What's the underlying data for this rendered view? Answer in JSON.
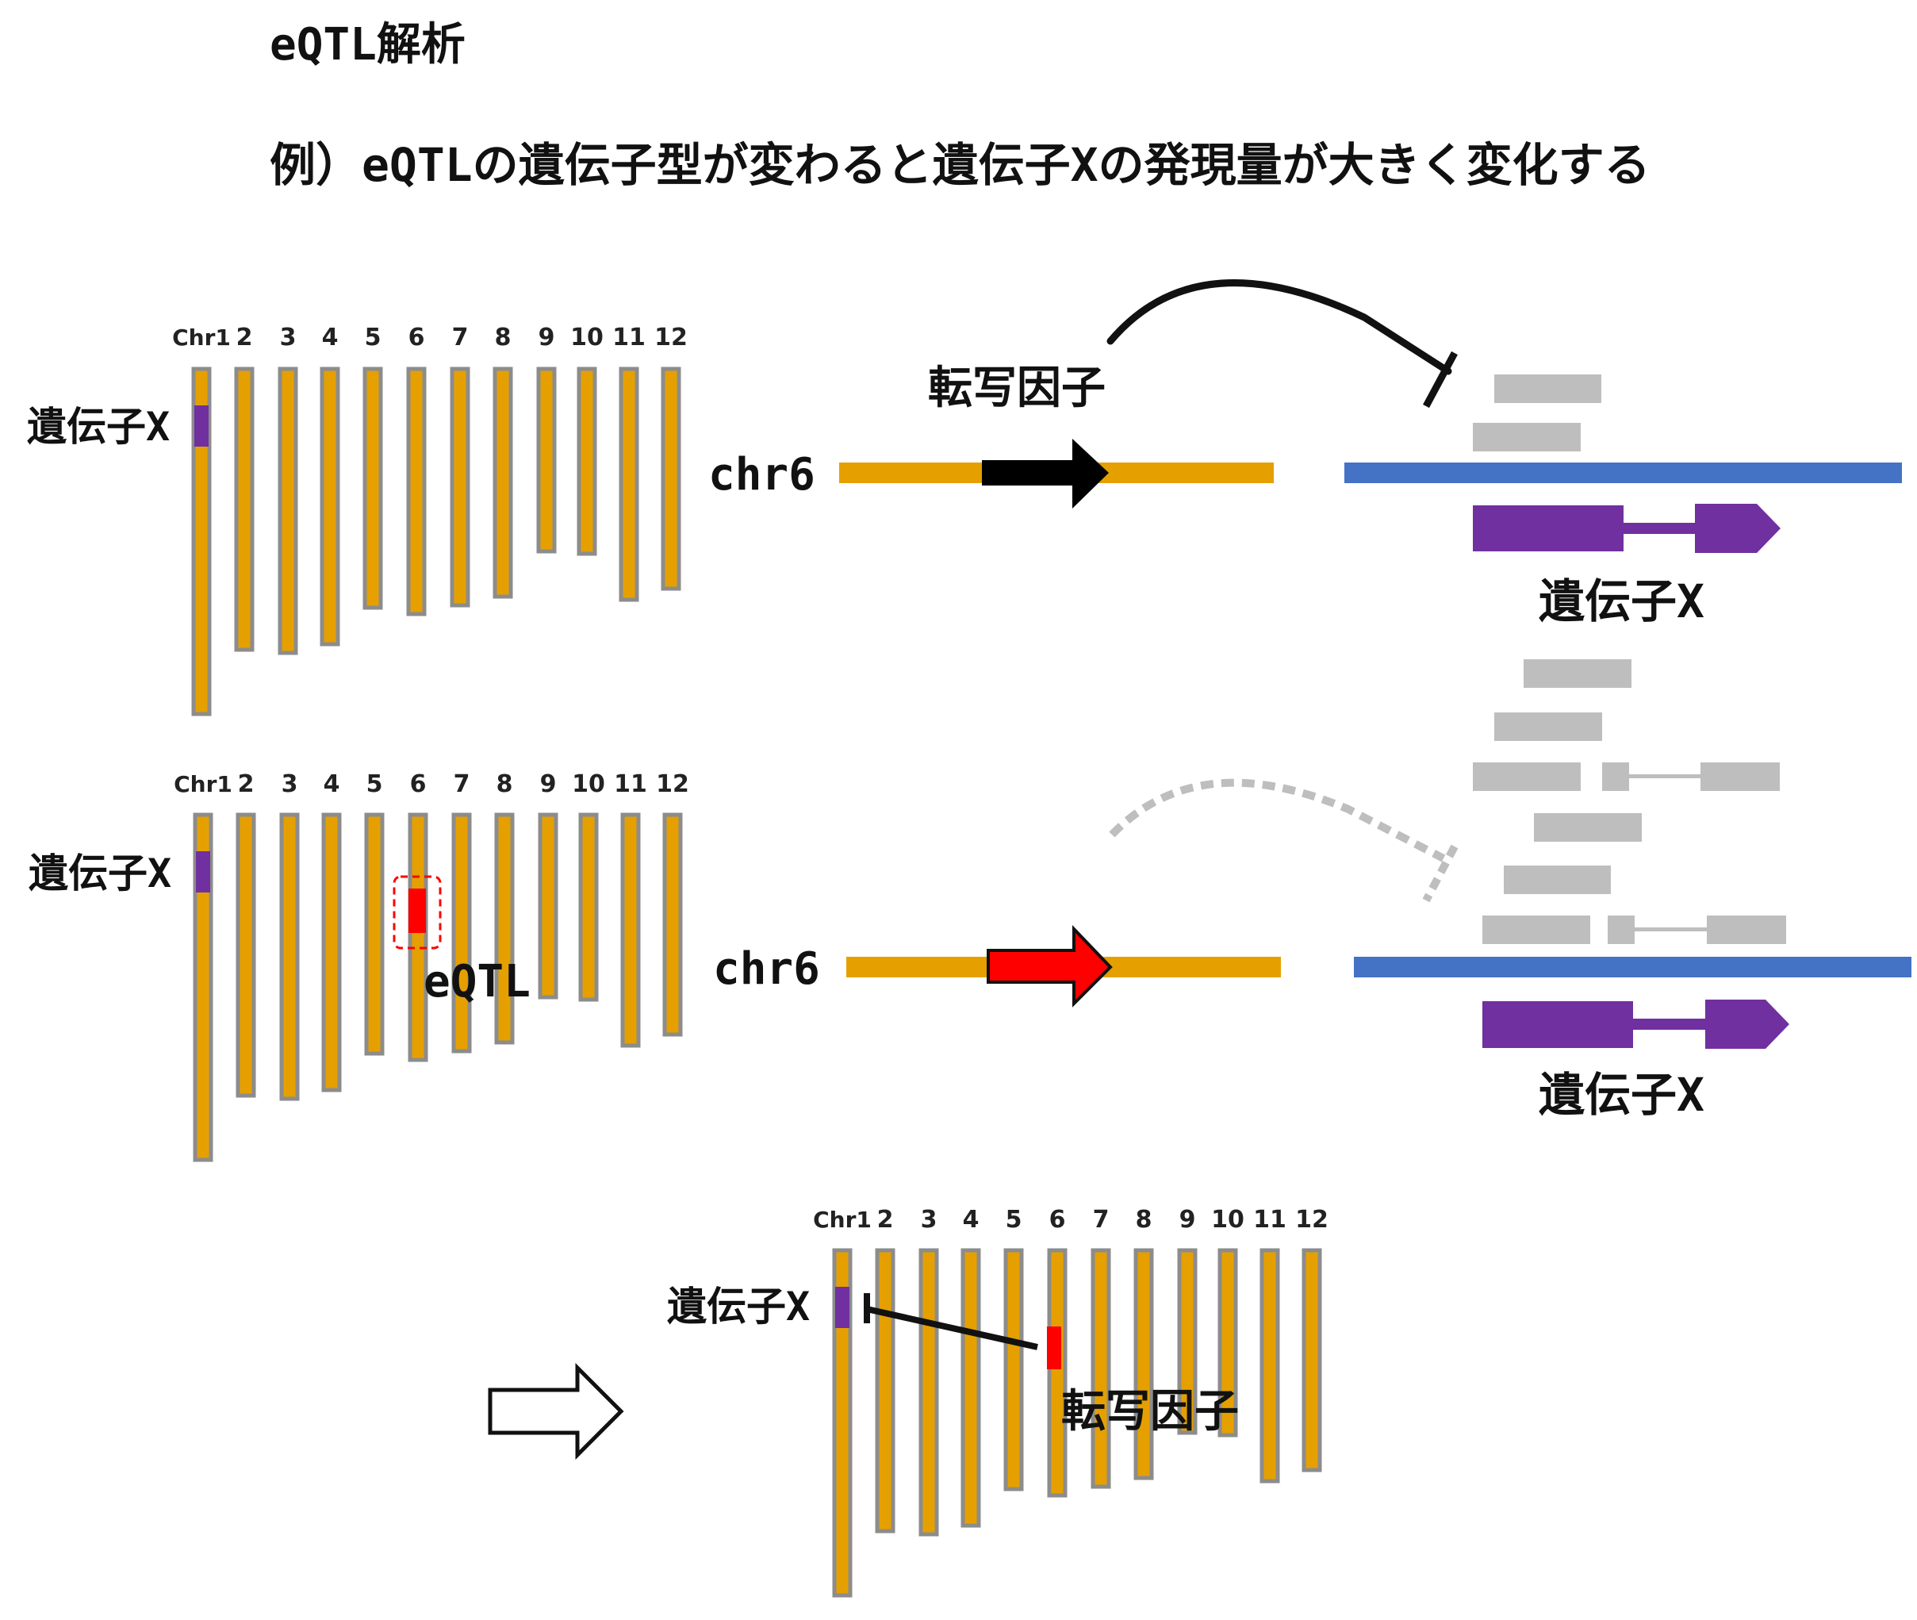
{
  "title": "eQTL解析",
  "subtitle": "例）eQTLの遺伝子型が変わると遺伝子Xの発現量が大きく変化する",
  "chromosome_labels": [
    "Chr1",
    "2",
    "3",
    "4",
    "5",
    "6",
    "7",
    "8",
    "9",
    "10",
    "11",
    "12"
  ],
  "labels": {
    "gene_x": "遺伝子X",
    "transcription_factor": "転写因子",
    "chr6": "chr6",
    "eqtl": "eQTL"
  },
  "colors": {
    "chromosome": "#E5A000",
    "chromosome_border": "#8C8C8C",
    "gene_x": "#7030A0",
    "eqtl": "#FF0000",
    "gene_locus_line": "#4472C4",
    "transcript_low": "#BEBEBE",
    "tf_normal": "#000000",
    "tf_variant": "#FF0000"
  },
  "icons": {
    "repression": "t-bar-inhibition-icon",
    "result": "outline-right-arrow-icon"
  },
  "states": [
    {
      "name": "reference",
      "gene_x_transcripts": 2,
      "tf_repression": "active"
    },
    {
      "name": "eqtl-variant",
      "gene_x_transcripts": 6,
      "tf_repression": "weakened"
    }
  ]
}
